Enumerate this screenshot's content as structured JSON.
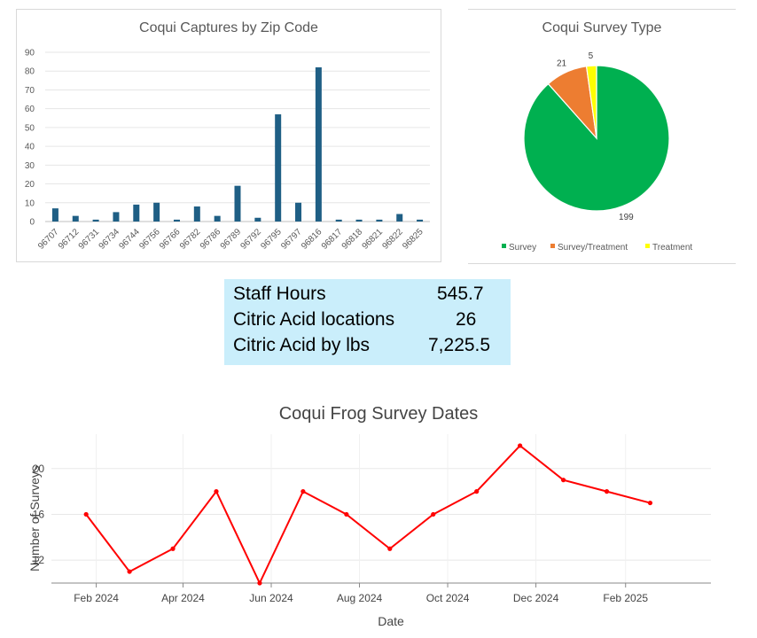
{
  "chart_data": [
    {
      "type": "bar",
      "title": "Coqui Captures by Zip Code",
      "categories": [
        "96707",
        "96712",
        "96731",
        "96734",
        "96744",
        "96756",
        "96766",
        "96782",
        "96786",
        "96789",
        "96792",
        "96795",
        "96797",
        "96816",
        "96817",
        "96818",
        "96821",
        "96822",
        "96825"
      ],
      "values": [
        7,
        3,
        1,
        5,
        9,
        10,
        1,
        8,
        3,
        19,
        2,
        57,
        10,
        82,
        1,
        1,
        1,
        4,
        1
      ],
      "ylim": [
        0,
        90
      ],
      "yticks": [
        "0",
        "10",
        "20",
        "30",
        "40",
        "50",
        "60",
        "70",
        "80",
        "90"
      ],
      "grid": true,
      "color": "#1f5f85"
    },
    {
      "type": "pie",
      "title": "Coqui Survey Type",
      "labels": [
        "Survey",
        "Survey/Treatment",
        "Treatment"
      ],
      "values": [
        199,
        21,
        5
      ],
      "value_labels": [
        "199",
        "21",
        "5"
      ],
      "colors": [
        "#00b050",
        "#ed7d31",
        "#ffff00"
      ],
      "legend": "bottom"
    },
    {
      "type": "line",
      "title": "Coqui Frog Survey Dates",
      "xlabel": "Date",
      "ylabel": "Number of Surveys",
      "x": [
        "2024-01-25",
        "2024-02-24",
        "2024-03-25",
        "2024-04-24",
        "2024-05-24",
        "2024-06-23",
        "2024-07-23",
        "2024-08-22",
        "2024-09-21",
        "2024-10-21",
        "2024-11-20",
        "2024-12-20",
        "2025-01-19",
        "2025-02-18"
      ],
      "y": [
        16,
        11,
        13,
        18,
        10,
        18,
        16,
        13,
        16,
        18,
        22,
        19,
        18,
        17
      ],
      "xticks": [
        "Feb 2024",
        "Apr 2024",
        "Jun 2024",
        "Aug 2024",
        "Oct 2024",
        "Dec 2024",
        "Feb 2025"
      ],
      "yticks": [
        "12",
        "16",
        "20"
      ],
      "xlim": [
        "2024-01-01",
        "2025-04-01"
      ],
      "ylim": [
        10,
        23
      ],
      "grid": true,
      "color": "#ff0000"
    }
  ],
  "stats": [
    {
      "label": "Staff Hours",
      "value": "545.7"
    },
    {
      "label": "Citric Acid locations",
      "value": "26"
    },
    {
      "label": "Citric Acid by lbs",
      "value": "7,225.5"
    }
  ]
}
